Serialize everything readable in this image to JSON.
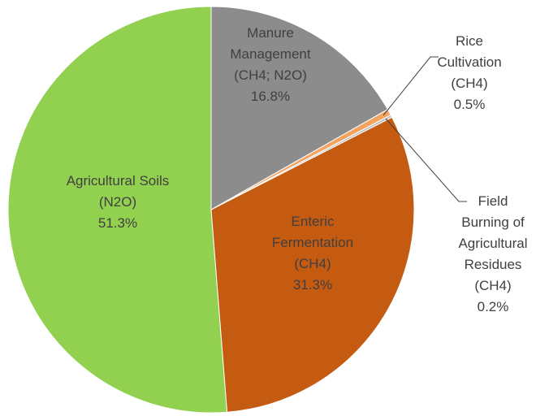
{
  "chart_data": {
    "type": "pie",
    "categories": [
      "Manure Management (CH4; N2O)",
      "Rice Cultivation (CH4)",
      "Field Burning of Agricultural Residues (CH4)",
      "Enteric Fermentation (CH4)",
      "Agricultural Soils (N2O)"
    ],
    "values": [
      16.8,
      0.5,
      0.2,
      31.3,
      51.3
    ],
    "value_labels": [
      "16.8%",
      "0.5%",
      "0.2%",
      "31.3%",
      "51.3%"
    ],
    "colors": [
      "#8c8c8c",
      "#f4a460",
      "#c0c0c0",
      "#c55a11",
      "#92d050"
    ]
  }
}
